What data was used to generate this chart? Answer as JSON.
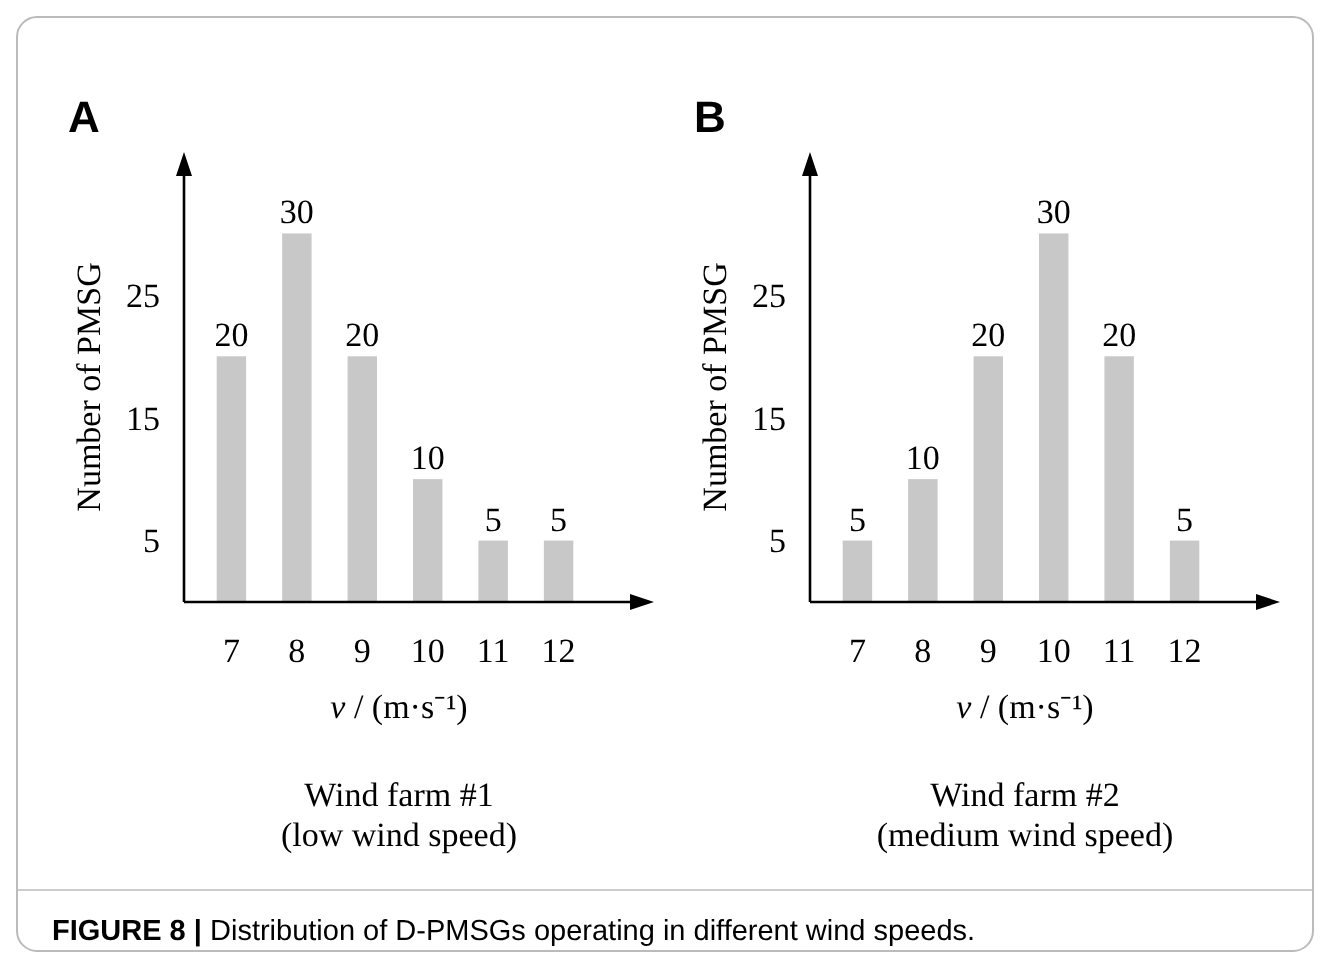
{
  "chart_data": [
    {
      "type": "bar",
      "title": "A",
      "xlabel": "v / (m·s⁻¹)",
      "ylabel": "Number of PMSG",
      "categories": [
        "7",
        "8",
        "9",
        "10",
        "11",
        "12"
      ],
      "values": [
        20,
        30,
        20,
        10,
        5,
        5
      ],
      "color": "#c8c8c8",
      "ylim": [
        0,
        35
      ],
      "yticks": [
        5,
        15,
        25
      ],
      "data_labels": true,
      "grid": false,
      "annotations": [
        "Wind farm #1",
        "(low wind speed)",
        "FIGURE 8 | Distribution of D-PMSGs operating in different wind speeds."
      ]
    },
    {
      "type": "bar",
      "title": "B",
      "xlabel": "v / (m·s⁻¹)",
      "ylabel": "Number of PMSG",
      "categories": [
        "7",
        "8",
        "9",
        "10",
        "11",
        "12"
      ],
      "values": [
        5,
        10,
        20,
        30,
        20,
        5
      ],
      "color": "#c8c8c8",
      "ylim": [
        0,
        35
      ],
      "yticks": [
        5,
        15,
        25
      ],
      "data_labels": true,
      "grid": false,
      "annotations": [
        "Wind farm #2",
        "(medium wind speed)"
      ]
    }
  ]
}
